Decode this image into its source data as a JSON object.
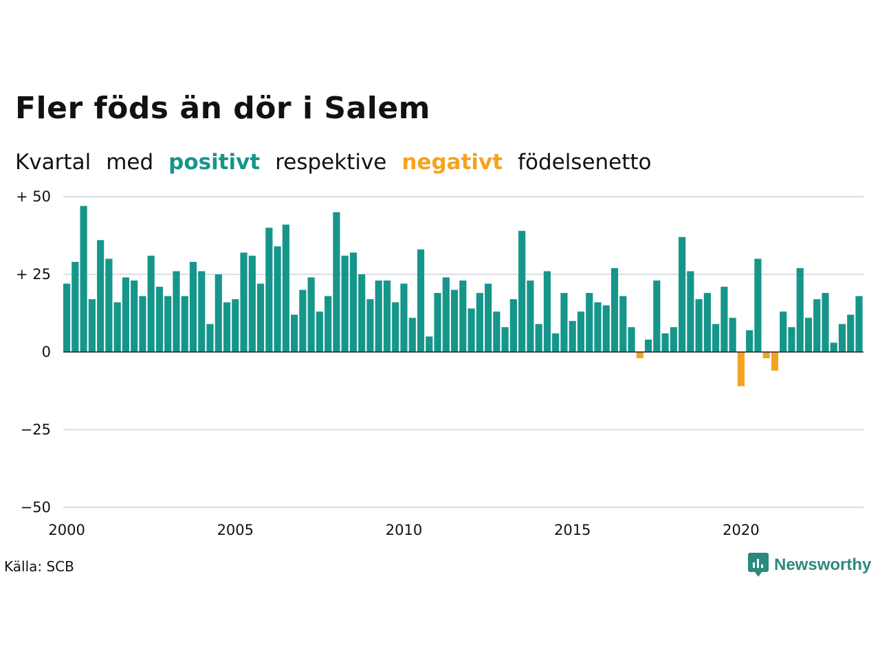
{
  "title": "Fler föds än dör i Salem",
  "subtitle": {
    "w1": "Kvartal",
    "w2": "med",
    "positive": "positivt",
    "w3": "respektive",
    "negative": "negativt",
    "w4": "födelsenetto"
  },
  "source": "Källa: SCB",
  "logo_text": "Newsworthy",
  "colors": {
    "positive": "#16968a",
    "negative": "#f5a31f",
    "grid": "#dcdce6",
    "zero": "#222222"
  },
  "chart_data": {
    "type": "bar",
    "x_start": 2000,
    "period": "quarter",
    "ylim": [
      -50,
      50
    ],
    "y_ticks": [
      50,
      25,
      0,
      -25,
      -50
    ],
    "y_tick_labels": [
      "+ 50",
      "+ 25",
      "0",
      "−25",
      "−50"
    ],
    "x_ticks": [
      2000,
      2005,
      2010,
      2015,
      2020
    ],
    "x_tick_labels": [
      "2000",
      "2005",
      "2010",
      "2015",
      "2020"
    ],
    "grid": true,
    "values": [
      22,
      29,
      47,
      17,
      36,
      30,
      16,
      24,
      23,
      18,
      31,
      21,
      18,
      26,
      18,
      29,
      26,
      9,
      25,
      16,
      17,
      32,
      31,
      22,
      40,
      34,
      41,
      12,
      20,
      24,
      13,
      18,
      45,
      31,
      32,
      25,
      17,
      23,
      23,
      16,
      22,
      11,
      33,
      5,
      19,
      24,
      20,
      23,
      14,
      19,
      22,
      13,
      8,
      17,
      39,
      23,
      9,
      26,
      6,
      19,
      10,
      13,
      19,
      16,
      15,
      27,
      18,
      8,
      -2,
      4,
      23,
      6,
      8,
      37,
      26,
      17,
      19,
      9,
      21,
      11,
      -11,
      7,
      30,
      -2,
      -6,
      13,
      8,
      27,
      11,
      17,
      19,
      3,
      9,
      12,
      18
    ]
  }
}
